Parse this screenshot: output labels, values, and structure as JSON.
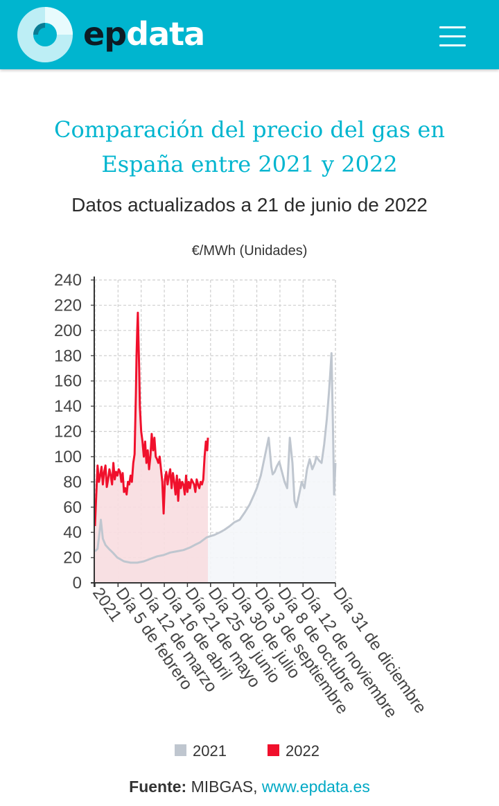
{
  "header": {
    "brand_ep": "ep",
    "brand_data": "data",
    "colors": {
      "bar": "#00b5cf",
      "logo_light": "#bdeef5",
      "logo_dark": "#0a7b93"
    }
  },
  "title": "Comparación del precio del gas en España entre 2021 y 2022",
  "subtitle": "Datos actualizados a 21 de junio de 2022",
  "chart_data": {
    "type": "area",
    "ylabel": "€/MWh (Unidades)",
    "ylim": [
      0,
      240
    ],
    "yticks": [
      0,
      20,
      40,
      60,
      80,
      100,
      120,
      140,
      160,
      180,
      200,
      220,
      240
    ],
    "xlim": [
      0,
      365
    ],
    "xticks": [
      {
        "day": 1,
        "label": "2021"
      },
      {
        "day": 36,
        "label": "Día 5 de febrero"
      },
      {
        "day": 71,
        "label": "Día 12 de marzo"
      },
      {
        "day": 106,
        "label": "Día 16 de abril"
      },
      {
        "day": 141,
        "label": "Día 21 de mayo"
      },
      {
        "day": 176,
        "label": "Día 25 de junio"
      },
      {
        "day": 211,
        "label": "Día 30 de julio"
      },
      {
        "day": 246,
        "label": "Día 3 de septiembre"
      },
      {
        "day": 281,
        "label": "Día 8 de octubre"
      },
      {
        "day": 316,
        "label": "Día 12 de noviembre"
      },
      {
        "day": 365,
        "label": "Día 31 de diciembre"
      }
    ],
    "grid": true,
    "legend_position": "bottom",
    "series": [
      {
        "name": "2021",
        "color": "#bfc6cf",
        "fill": "#f4f6f9",
        "x": [
          1,
          5,
          8,
          10,
          13,
          17,
          22,
          28,
          35,
          45,
          55,
          65,
          75,
          85,
          95,
          105,
          115,
          125,
          135,
          145,
          152,
          160,
          165,
          170,
          176,
          182,
          190,
          197,
          205,
          212,
          220,
          228,
          235,
          242,
          246,
          252,
          258,
          264,
          268,
          270,
          273,
          276,
          280,
          284,
          288,
          292,
          296,
          300,
          303,
          306,
          310,
          314,
          318,
          322,
          326,
          330,
          334,
          336,
          340,
          344,
          348,
          352,
          355,
          357,
          359,
          361,
          363,
          365
        ],
        "y": [
          25,
          27,
          40,
          50,
          35,
          30,
          27,
          24,
          20,
          17,
          16,
          16,
          17,
          19,
          21,
          22,
          24,
          25,
          26,
          28,
          30,
          32,
          34,
          36,
          37,
          38,
          40,
          42,
          45,
          48,
          50,
          56,
          62,
          70,
          75,
          85,
          100,
          115,
          92,
          86,
          88,
          92,
          96,
          88,
          80,
          75,
          115,
          95,
          65,
          60,
          70,
          80,
          75,
          90,
          98,
          90,
          95,
          100,
          97,
          95,
          110,
          130,
          150,
          165,
          182,
          130,
          70,
          95
        ]
      },
      {
        "name": "2022",
        "color": "#f0102c",
        "fill": "#f8dde0",
        "x": [
          1,
          3,
          5,
          7,
          9,
          11,
          13,
          15,
          17,
          19,
          21,
          23,
          25,
          27,
          29,
          31,
          33,
          35,
          37,
          39,
          41,
          43,
          45,
          47,
          49,
          51,
          53,
          55,
          57,
          59,
          61,
          62,
          63,
          64,
          65,
          66,
          67,
          68,
          69,
          71,
          73,
          75,
          77,
          79,
          81,
          83,
          85,
          87,
          89,
          91,
          93,
          95,
          97,
          99,
          101,
          103,
          105,
          107,
          109,
          111,
          113,
          115,
          117,
          119,
          121,
          123,
          125,
          127,
          129,
          131,
          133,
          135,
          137,
          139,
          141,
          143,
          145,
          147,
          149,
          151,
          153,
          155,
          157,
          159,
          161,
          163,
          165,
          167,
          169,
          171,
          172
        ],
        "y": [
          45,
          70,
          93,
          80,
          85,
          92,
          78,
          88,
          93,
          76,
          82,
          90,
          85,
          78,
          95,
          82,
          88,
          85,
          90,
          88,
          80,
          87,
          72,
          75,
          70,
          80,
          78,
          85,
          80,
          95,
          102,
          125,
          150,
          180,
          200,
          214,
          190,
          170,
          140,
          120,
          112,
          100,
          112,
          95,
          105,
          90,
          100,
          118,
          105,
          115,
          100,
          98,
          95,
          100,
          90,
          80,
          55,
          82,
          88,
          78,
          85,
          90,
          75,
          87,
          80,
          70,
          85,
          65,
          82,
          75,
          80,
          78,
          70,
          85,
          72,
          80,
          75,
          82,
          80,
          78,
          72,
          82,
          78,
          75,
          80,
          78,
          82,
          100,
          112,
          105,
          115
        ]
      }
    ]
  },
  "legend": [
    {
      "label": "2021",
      "color": "#bfc6cf"
    },
    {
      "label": "2022",
      "color": "#f0102c"
    }
  ],
  "source": {
    "label": "Fuente:",
    "name": "MIBGAS,",
    "link": "www.epdata.es"
  }
}
